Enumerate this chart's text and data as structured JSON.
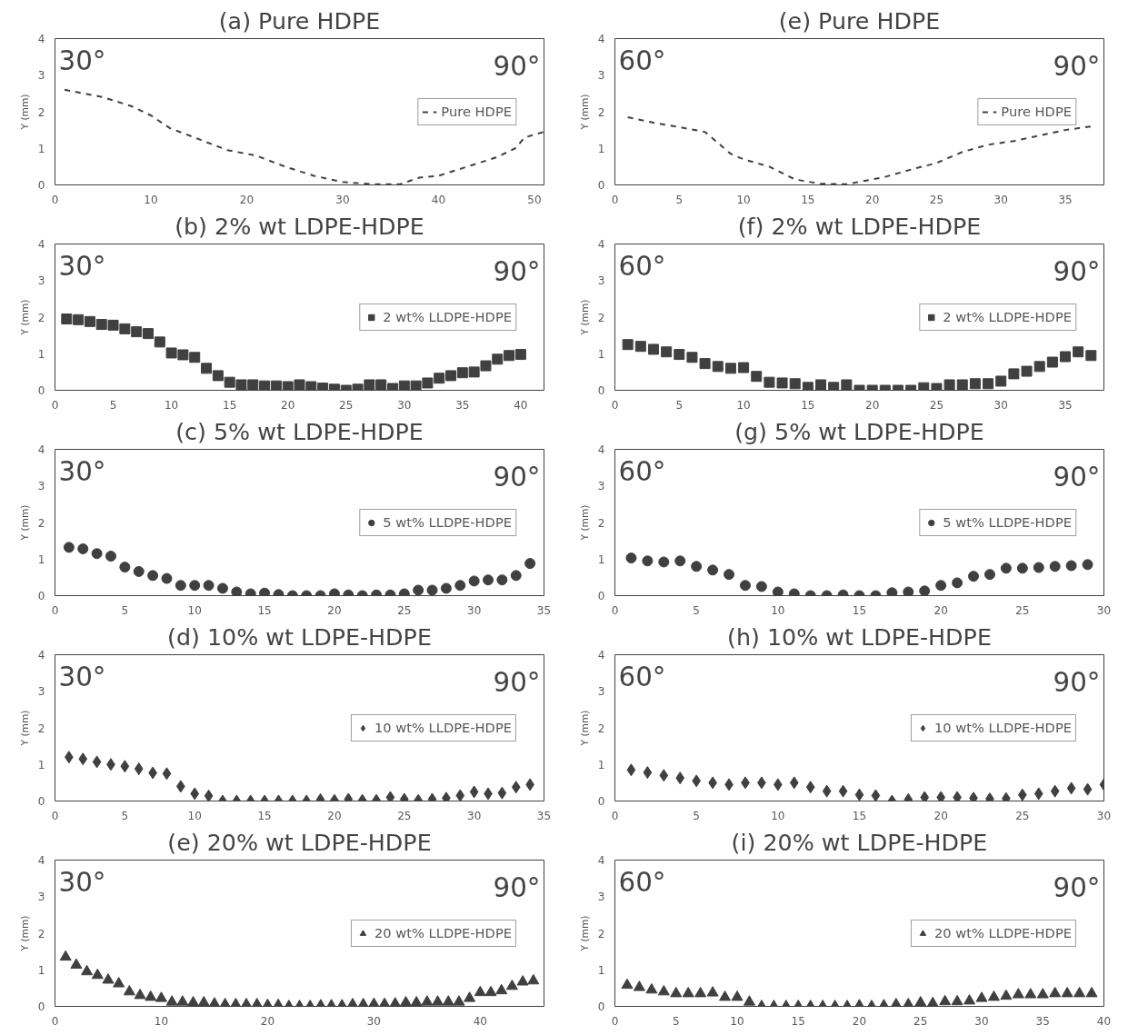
{
  "chart_data": [
    {
      "type": "line",
      "title": "(a) Pure HDPE",
      "ylabel": "Y (mm)",
      "annotations": [
        "30°",
        "90°"
      ],
      "xlim": [
        0,
        51
      ],
      "xticks": [
        0,
        10,
        20,
        30,
        40,
        50
      ],
      "ylim": [
        0,
        4
      ],
      "yticks": [
        0,
        1,
        2,
        3,
        4
      ],
      "legend": "right",
      "line_style": "dashed",
      "series": [
        {
          "name": "Pure HDPE",
          "color": "#404040",
          "x": [
            1,
            5,
            8,
            10,
            12,
            15,
            18,
            21,
            24,
            27,
            30,
            33,
            36,
            38,
            40,
            43,
            46,
            48,
            49,
            51
          ],
          "values": [
            2.6,
            2.4,
            2.15,
            1.9,
            1.55,
            1.25,
            0.95,
            0.8,
            0.5,
            0.25,
            0.08,
            0.02,
            0.02,
            0.2,
            0.25,
            0.5,
            0.75,
            1.0,
            1.3,
            1.45
          ]
        }
      ]
    },
    {
      "type": "line",
      "title": "(e) Pure HDPE",
      "ylabel": "Y (mm)",
      "annotations": [
        "60°",
        "90°"
      ],
      "xlim": [
        0,
        38
      ],
      "xticks": [
        0,
        5,
        10,
        15,
        20,
        25,
        30,
        35
      ],
      "ylim": [
        0,
        4
      ],
      "yticks": [
        0,
        1,
        2,
        3,
        4
      ],
      "legend": "right",
      "line_style": "dashed",
      "series": [
        {
          "name": "Pure HDPE",
          "color": "#404040",
          "x": [
            1,
            3,
            5,
            7,
            8,
            9,
            10,
            12,
            14,
            16,
            18,
            20,
            21,
            23,
            25,
            27,
            29,
            31,
            33,
            35,
            37
          ],
          "values": [
            1.85,
            1.7,
            1.58,
            1.45,
            1.15,
            0.85,
            0.7,
            0.5,
            0.15,
            0.03,
            0.02,
            0.15,
            0.22,
            0.42,
            0.6,
            0.9,
            1.1,
            1.2,
            1.35,
            1.5,
            1.6
          ]
        }
      ]
    },
    {
      "type": "scatter",
      "title": "(b) 2% wt LDPE-HDPE",
      "ylabel": "Y (mm)",
      "annotations": [
        "30°",
        "90°"
      ],
      "xlim": [
        0,
        42
      ],
      "xticks": [
        0,
        5,
        10,
        15,
        20,
        25,
        30,
        35,
        40
      ],
      "ylim": [
        0,
        4
      ],
      "yticks": [
        0,
        1,
        2,
        3,
        4
      ],
      "legend": "right",
      "marker": "square",
      "series": [
        {
          "name": "2 wt% LLDPE-HDPE",
          "color": "#404040",
          "x": [
            1,
            2,
            3,
            4,
            5,
            6,
            7,
            8,
            9,
            10,
            11,
            12,
            13,
            14,
            15,
            16,
            17,
            18,
            19,
            20,
            21,
            22,
            23,
            24,
            25,
            26,
            27,
            28,
            29,
            30,
            31,
            32,
            33,
            34,
            35,
            36,
            37,
            38,
            39,
            40
          ],
          "values": [
            1.95,
            1.93,
            1.88,
            1.8,
            1.78,
            1.68,
            1.6,
            1.55,
            1.32,
            1.02,
            0.97,
            0.9,
            0.6,
            0.4,
            0.22,
            0.15,
            0.15,
            0.12,
            0.12,
            0.1,
            0.15,
            0.1,
            0.06,
            0.03,
            0.0,
            0.03,
            0.15,
            0.15,
            0.05,
            0.12,
            0.12,
            0.2,
            0.33,
            0.4,
            0.48,
            0.5,
            0.67,
            0.85,
            0.95,
            0.98
          ]
        }
      ]
    },
    {
      "type": "scatter",
      "title": "(f) 2% wt LDPE-HDPE",
      "ylabel": "Y (mm)",
      "annotations": [
        "60°",
        "90°"
      ],
      "xlim": [
        0,
        38
      ],
      "xticks": [
        0,
        5,
        10,
        15,
        20,
        25,
        30,
        35
      ],
      "ylim": [
        0,
        4
      ],
      "yticks": [
        0,
        1,
        2,
        3,
        4
      ],
      "legend": "right",
      "marker": "square",
      "series": [
        {
          "name": "2 wt% LLDPE-HDPE",
          "color": "#404040",
          "x": [
            1,
            2,
            3,
            4,
            5,
            6,
            7,
            8,
            9,
            10,
            11,
            12,
            13,
            14,
            15,
            16,
            17,
            18,
            19,
            20,
            21,
            22,
            23,
            24,
            25,
            26,
            27,
            28,
            29,
            30,
            31,
            32,
            33,
            34,
            35,
            36,
            37
          ],
          "values": [
            1.25,
            1.2,
            1.12,
            1.05,
            0.98,
            0.9,
            0.73,
            0.65,
            0.6,
            0.62,
            0.38,
            0.22,
            0.2,
            0.18,
            0.08,
            0.15,
            0.08,
            0.15,
            0.0,
            0.0,
            0.0,
            0.0,
            0.0,
            0.07,
            0.05,
            0.15,
            0.15,
            0.18,
            0.18,
            0.25,
            0.45,
            0.52,
            0.65,
            0.77,
            0.92,
            1.05,
            0.95
          ]
        }
      ]
    },
    {
      "type": "scatter",
      "title": "(c) 5% wt LDPE-HDPE",
      "ylabel": "Y (mm)",
      "annotations": [
        "30°",
        "90°"
      ],
      "xlim": [
        0,
        35
      ],
      "xticks": [
        0,
        5,
        10,
        15,
        20,
        25,
        30,
        35
      ],
      "ylim": [
        0,
        4
      ],
      "yticks": [
        0,
        1,
        2,
        3,
        4
      ],
      "legend": "right",
      "marker": "circle",
      "series": [
        {
          "name": "5 wt% LLDPE-HDPE",
          "color": "#404040",
          "x": [
            1,
            2,
            3,
            4,
            5,
            6,
            7,
            8,
            9,
            10,
            11,
            12,
            13,
            14,
            15,
            16,
            17,
            18,
            19,
            20,
            21,
            22,
            23,
            24,
            25,
            26,
            27,
            28,
            29,
            30,
            31,
            32,
            33,
            34
          ],
          "values": [
            1.32,
            1.28,
            1.15,
            1.08,
            0.78,
            0.66,
            0.55,
            0.47,
            0.28,
            0.28,
            0.28,
            0.2,
            0.1,
            0.05,
            0.07,
            0.03,
            0.0,
            0.0,
            0.0,
            0.05,
            0.02,
            0.0,
            0.02,
            0.02,
            0.05,
            0.15,
            0.15,
            0.2,
            0.28,
            0.4,
            0.43,
            0.43,
            0.55,
            0.88
          ]
        }
      ]
    },
    {
      "type": "scatter",
      "title": "(g) 5% wt LDPE-HDPE",
      "ylabel": "Y (mm)",
      "annotations": [
        "60°",
        "90°"
      ],
      "xlim": [
        0,
        30
      ],
      "xticks": [
        0,
        5,
        10,
        15,
        20,
        25,
        30
      ],
      "ylim": [
        0,
        4
      ],
      "yticks": [
        0,
        1,
        2,
        3,
        4
      ],
      "legend": "right",
      "marker": "circle",
      "series": [
        {
          "name": "5 wt% LLDPE-HDPE",
          "color": "#404040",
          "x": [
            1,
            2,
            3,
            4,
            5,
            6,
            7,
            8,
            9,
            10,
            11,
            12,
            13,
            14,
            15,
            16,
            17,
            18,
            19,
            20,
            21,
            22,
            23,
            24,
            25,
            26,
            27,
            28,
            29
          ],
          "values": [
            1.03,
            0.95,
            0.92,
            0.95,
            0.8,
            0.7,
            0.58,
            0.28,
            0.25,
            0.1,
            0.05,
            0.0,
            0.0,
            0.02,
            0.0,
            0.0,
            0.08,
            0.1,
            0.13,
            0.28,
            0.35,
            0.53,
            0.58,
            0.75,
            0.75,
            0.77,
            0.8,
            0.82,
            0.85
          ]
        }
      ]
    },
    {
      "type": "scatter",
      "title": "(d) 10% wt LDPE-HDPE",
      "ylabel": "Y (mm)",
      "annotations": [
        "30°",
        "90°"
      ],
      "xlim": [
        0,
        35
      ],
      "xticks": [
        0,
        5,
        10,
        15,
        20,
        25,
        30,
        35
      ],
      "ylim": [
        0,
        4
      ],
      "yticks": [
        0,
        1,
        2,
        3,
        4
      ],
      "legend": "right",
      "marker": "diamond",
      "series": [
        {
          "name": "10 wt% LLDPE-HDPE",
          "color": "#404040",
          "x": [
            1,
            2,
            3,
            4,
            5,
            6,
            7,
            8,
            9,
            10,
            11,
            12,
            13,
            14,
            15,
            16,
            17,
            18,
            19,
            20,
            21,
            22,
            23,
            24,
            25,
            26,
            27,
            28,
            29,
            30,
            31,
            32,
            33,
            34
          ],
          "values": [
            1.2,
            1.15,
            1.07,
            1.0,
            0.95,
            0.88,
            0.77,
            0.75,
            0.4,
            0.2,
            0.14,
            0.0,
            0.0,
            0.0,
            0.0,
            0.0,
            0.0,
            0.0,
            0.04,
            0.02,
            0.05,
            0.02,
            0.02,
            0.1,
            0.05,
            0.02,
            0.05,
            0.08,
            0.15,
            0.25,
            0.2,
            0.22,
            0.38,
            0.45
          ]
        }
      ]
    },
    {
      "type": "scatter",
      "title": "(h) 10% wt LDPE-HDPE",
      "ylabel": "Y (mm)",
      "annotations": [
        "60°",
        "90°"
      ],
      "xlim": [
        0,
        30
      ],
      "xticks": [
        0,
        5,
        10,
        15,
        20,
        25,
        30
      ],
      "ylim": [
        0,
        4
      ],
      "yticks": [
        0,
        1,
        2,
        3,
        4
      ],
      "legend": "right",
      "marker": "diamond",
      "series": [
        {
          "name": "10 wt% LLDPE-HDPE",
          "color": "#404040",
          "x": [
            1,
            2,
            3,
            4,
            5,
            6,
            7,
            8,
            9,
            10,
            11,
            12,
            13,
            14,
            15,
            16,
            17,
            18,
            19,
            20,
            21,
            22,
            23,
            24,
            25,
            26,
            27,
            28,
            29,
            30
          ],
          "values": [
            0.85,
            0.78,
            0.7,
            0.63,
            0.55,
            0.5,
            0.45,
            0.5,
            0.5,
            0.45,
            0.5,
            0.38,
            0.27,
            0.27,
            0.17,
            0.15,
            0.0,
            0.04,
            0.1,
            0.1,
            0.1,
            0.08,
            0.06,
            0.07,
            0.17,
            0.2,
            0.27,
            0.35,
            0.32,
            0.45
          ]
        }
      ]
    },
    {
      "type": "scatter",
      "title": "(e) 20% wt LDPE-HDPE",
      "ylabel": "Y (mm)",
      "annotations": [
        "30°",
        "90°"
      ],
      "xlim": [
        0,
        46
      ],
      "xticks": [
        0,
        10,
        20,
        30,
        40
      ],
      "ylim": [
        0,
        4
      ],
      "yticks": [
        0,
        1,
        2,
        3,
        4
      ],
      "legend": "right",
      "marker": "triangle",
      "series": [
        {
          "name": "20 wt% LLDPE-HDPE",
          "color": "#404040",
          "x": [
            1,
            2,
            3,
            4,
            5,
            6,
            7,
            8,
            9,
            10,
            11,
            12,
            13,
            14,
            15,
            16,
            17,
            18,
            19,
            20,
            21,
            22,
            23,
            24,
            25,
            26,
            27,
            28,
            29,
            30,
            31,
            32,
            33,
            34,
            35,
            36,
            37,
            38,
            39,
            40,
            41,
            42,
            43,
            44,
            45
          ],
          "values": [
            1.35,
            1.13,
            0.95,
            0.85,
            0.72,
            0.62,
            0.4,
            0.3,
            0.25,
            0.22,
            0.12,
            0.12,
            0.1,
            0.1,
            0.07,
            0.05,
            0.05,
            0.05,
            0.05,
            0.03,
            0.03,
            0.0,
            0.0,
            0.0,
            0.02,
            0.02,
            0.02,
            0.05,
            0.05,
            0.06,
            0.06,
            0.07,
            0.1,
            0.1,
            0.12,
            0.12,
            0.12,
            0.12,
            0.22,
            0.38,
            0.38,
            0.43,
            0.55,
            0.67,
            0.7
          ]
        }
      ]
    },
    {
      "type": "scatter",
      "title": "(i) 20% wt LDPE-HDPE",
      "ylabel": "Y (mm)",
      "annotations": [
        "60°",
        "90°"
      ],
      "xlim": [
        0,
        40
      ],
      "xticks": [
        0,
        5,
        10,
        15,
        20,
        25,
        30,
        35,
        40
      ],
      "ylim": [
        0,
        4
      ],
      "yticks": [
        0,
        1,
        2,
        3,
        4
      ],
      "legend": "right",
      "marker": "triangle",
      "series": [
        {
          "name": "20 wt% LLDPE-HDPE",
          "color": "#404040",
          "x": [
            1,
            2,
            3,
            4,
            5,
            6,
            7,
            8,
            9,
            10,
            11,
            12,
            13,
            14,
            15,
            16,
            17,
            18,
            19,
            20,
            21,
            22,
            23,
            24,
            25,
            26,
            27,
            28,
            29,
            30,
            31,
            32,
            33,
            34,
            35,
            36,
            37,
            38,
            39
          ],
          "values": [
            0.58,
            0.52,
            0.45,
            0.4,
            0.35,
            0.35,
            0.35,
            0.37,
            0.25,
            0.25,
            0.12,
            0.0,
            0.0,
            0.0,
            0.0,
            0.0,
            0.0,
            0.0,
            0.0,
            0.02,
            0.0,
            0.02,
            0.05,
            0.05,
            0.1,
            0.08,
            0.13,
            0.13,
            0.15,
            0.22,
            0.25,
            0.28,
            0.32,
            0.32,
            0.32,
            0.35,
            0.35,
            0.35,
            0.35
          ]
        }
      ]
    }
  ]
}
